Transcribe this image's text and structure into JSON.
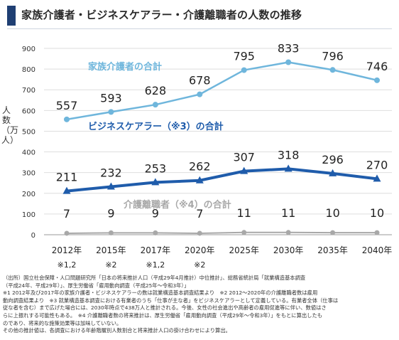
{
  "title": "家族介護者・ビジネスケアラー・介護離職者の人数の推移",
  "chart_data": {
    "type": "line",
    "categories": [
      "2012年",
      "2015年",
      "2017年",
      "2020年",
      "2025年",
      "2030年",
      "2035年",
      "2040年"
    ],
    "category_notes": [
      "※1,2",
      "※2",
      "※1,2",
      "※2",
      "",
      "",
      "",
      ""
    ],
    "ylabel": "人数（万人）",
    "ylim": [
      0,
      900
    ],
    "yticks": [
      0,
      100,
      200,
      300,
      400,
      500,
      600,
      700,
      800,
      900
    ],
    "grid": true,
    "series": [
      {
        "name": "家族介護者の合計",
        "values": [
          557,
          593,
          628,
          678,
          795,
          833,
          796,
          746
        ],
        "color": "#6fb6dc",
        "marker": "circle"
      },
      {
        "name": "ビジネスケアラー（※3）の合計",
        "values": [
          211,
          232,
          253,
          262,
          307,
          318,
          296,
          270
        ],
        "color": "#1f5cab",
        "marker": "triangle"
      },
      {
        "name": "介護離職者（※4）の合計",
        "values": [
          7,
          9,
          9,
          7,
          11,
          11,
          10,
          10
        ],
        "color": "#a8a8a8",
        "marker": "circle"
      }
    ]
  },
  "notes": [
    "（出所）国立社会保障・人口問題研究所「日本の将来推計人口（平成29年4月推計）中位推計」、総務省統計局「就業構造基本調査",
    "（平成24年、平成29年）」、厚生労働省「雇用動向調査（平成25年～令和3年）」",
    "※1 2012年及び2017年の家族介護者・ビジネスケアラーの数は就業構造基本調査結果より　※2 2012～2020年の介護離職者数は雇用",
    "動向調査結果より　※3 就業構造基本調査における有業者のうち「仕事が主な者」をビジネスケアラーとして定義している。有業者全体（仕事は",
    "従な者を含む）まで広げた場合には、2030年時点で438万人と推計される。今後、女性の社会進出や高齢者の雇用促進等に伴い、数値はさ",
    "らに上振れする可能性もある。　※4 介護離職者数の将来推計は、厚生労働省「雇用動向調査（平成29年～令和3年）」をもとに算出したも",
    "のであり、将来的な施策効果等は加味していない。",
    "その他の推計値は、各調査における年齢階層別人数割合と将来推計人口の掛け合わせにより算出。"
  ]
}
